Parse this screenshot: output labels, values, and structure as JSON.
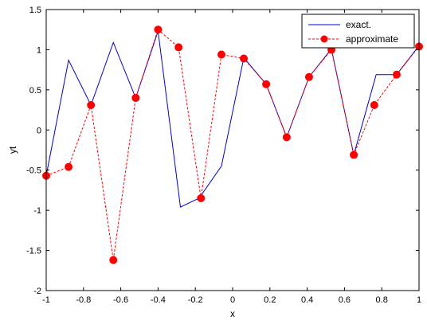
{
  "chart_data": {
    "type": "line",
    "xlabel": "x",
    "ylabel": "yt",
    "xlim": [
      -1,
      1
    ],
    "ylim": [
      -2,
      1.5
    ],
    "xticks": [
      -1,
      -0.8,
      -0.6,
      -0.4,
      -0.2,
      0,
      0.2,
      0.4,
      0.6,
      0.8,
      1
    ],
    "xtick_labels": [
      "-1",
      "-0.8",
      "-0.6",
      "-0.4",
      "-0.2",
      "0",
      "0.2",
      "0.4",
      "0.6",
      "0.8",
      "1"
    ],
    "yticks": [
      -2,
      -1.5,
      -1,
      -0.5,
      0,
      0.5,
      1,
      1.5
    ],
    "ytick_labels": [
      "-2",
      "-1.5",
      "-1",
      "-0.5",
      "0",
      "0.5",
      "1",
      "1.5"
    ],
    "grid": false,
    "legend_position": "top-right",
    "series": [
      {
        "name": "exact.",
        "color": "#0000cc",
        "line_style": "solid",
        "marker": "none",
        "x": [
          -1,
          -0.88,
          -0.76,
          -0.64,
          -0.52,
          -0.4,
          -0.28,
          -0.18,
          -0.06,
          0.06,
          0.18,
          0.29,
          0.41,
          0.53,
          0.65,
          0.77,
          0.88,
          1
        ],
        "y": [
          -0.57,
          0.87,
          0.31,
          1.09,
          0.4,
          1.23,
          -0.96,
          -0.85,
          -0.45,
          0.9,
          0.57,
          -0.09,
          0.66,
          1.01,
          -0.31,
          0.69,
          0.69,
          1.05
        ]
      },
      {
        "name": "approximate",
        "color": "#ff0000",
        "line_style": "dashed",
        "marker": "circle",
        "x": [
          -1,
          -0.88,
          -0.76,
          -0.64,
          -0.52,
          -0.4,
          -0.29,
          -0.17,
          -0.06,
          0.06,
          0.18,
          0.29,
          0.41,
          0.53,
          0.65,
          0.76,
          0.88,
          1
        ],
        "y": [
          -0.57,
          -0.46,
          0.31,
          -1.62,
          0.4,
          1.25,
          1.03,
          -0.85,
          0.94,
          0.89,
          0.57,
          -0.09,
          0.66,
          1.0,
          -0.31,
          0.31,
          0.69,
          1.04
        ]
      }
    ]
  }
}
